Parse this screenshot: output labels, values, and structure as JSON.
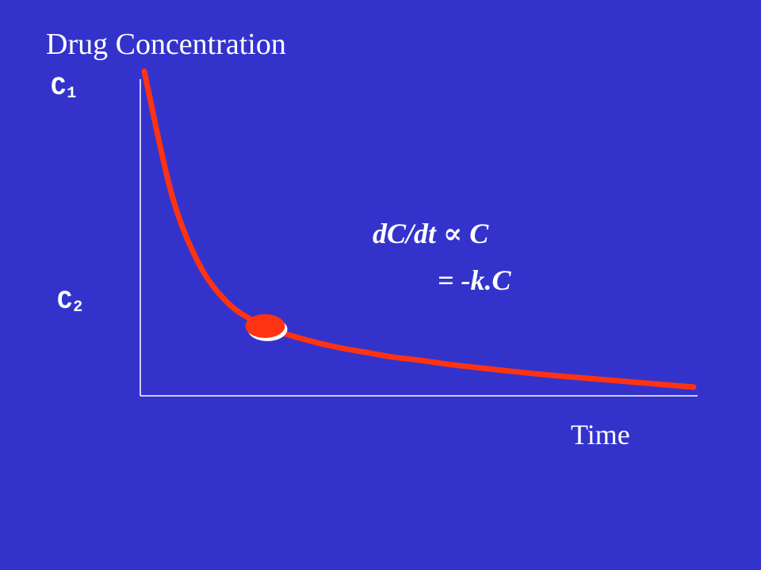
{
  "chart_data": {
    "type": "line",
    "title": "",
    "ylabel": "Drug Concentration",
    "xlabel": "Time",
    "y_ticks": [
      {
        "base": "C",
        "sub": "1"
      },
      {
        "base": "C",
        "sub": "2"
      }
    ],
    "series": [
      {
        "x": [
          0,
          0.5,
          1,
          1.5,
          2,
          2.5,
          3,
          3.5,
          4,
          4.5,
          5,
          5.5,
          6,
          6.5,
          7,
          7.5,
          8,
          8.5,
          9,
          9.5,
          10
        ],
        "values": [
          1.0,
          0.62,
          0.405,
          0.29,
          0.23,
          0.195,
          0.17,
          0.15,
          0.135,
          0.12,
          0.11,
          0.098,
          0.088,
          0.079,
          0.07,
          0.062,
          0.055,
          0.048,
          0.041,
          0.034,
          0.027
        ]
      }
    ],
    "highlight_point": {
      "x": 2.2,
      "y": 0.215
    },
    "xlim": [
      0,
      10
    ],
    "ylim": [
      0,
      1.0
    ],
    "grid": false,
    "colors": {
      "background": "#3333cc",
      "curve": "#ff3311",
      "marker": "#ff3311",
      "marker_outline": "#ffffff",
      "axes": "#ffffff",
      "text": "#ffffff"
    },
    "annotations": [
      {
        "text": "dC/dt ∝ C"
      },
      {
        "text": "= -k.C"
      }
    ]
  }
}
